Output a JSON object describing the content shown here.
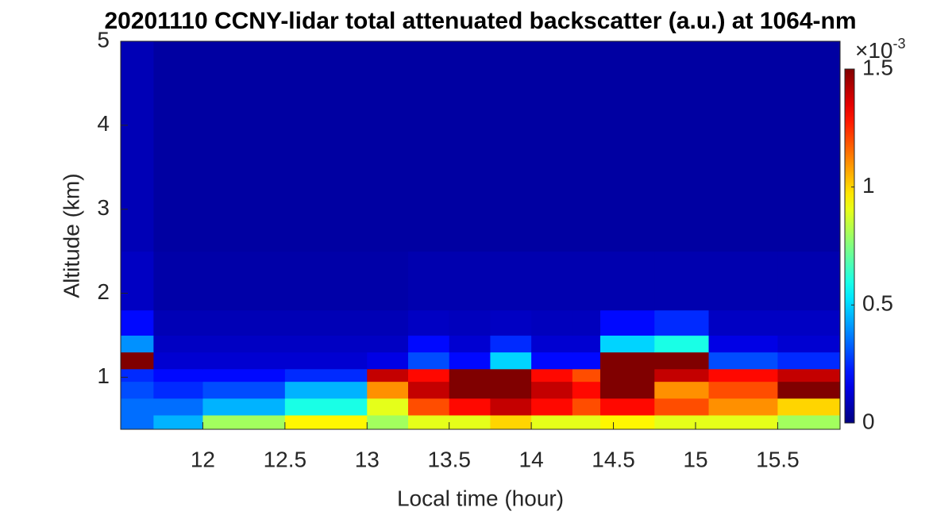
{
  "chart_data": {
    "type": "heatmap",
    "title": "20201110 CCNY-lidar total attenuated backscatter (a.u.) at 1064-nm",
    "xlabel": "Local time (hour)",
    "ylabel": "Altitude (km)",
    "x_edges": [
      11.5,
      11.7,
      12,
      12.5,
      13,
      13.25,
      13.5,
      13.75,
      14,
      14.25,
      14.42,
      14.75,
      15.08,
      15.5,
      15.88
    ],
    "y_edges": [
      0.38,
      0.55,
      0.75,
      0.95,
      1.1,
      1.3,
      1.5,
      1.8,
      2.5,
      5
    ],
    "z": [
      [
        0.35,
        0.45,
        0.8,
        0.95,
        0.8,
        0.9,
        0.9,
        1.0,
        0.9,
        0.9,
        0.95,
        0.9,
        0.9,
        0.8
      ],
      [
        0.35,
        0.35,
        0.45,
        0.6,
        0.9,
        1.2,
        1.3,
        1.4,
        1.3,
        1.2,
        1.3,
        1.2,
        1.1,
        1.0
      ],
      [
        0.3,
        0.25,
        0.3,
        0.45,
        1.1,
        1.4,
        1.5,
        1.5,
        1.4,
        1.3,
        1.5,
        1.1,
        1.2,
        1.5
      ],
      [
        0.25,
        0.2,
        0.2,
        0.25,
        1.4,
        1.3,
        1.5,
        1.5,
        1.3,
        1.2,
        1.5,
        1.4,
        1.3,
        1.4
      ],
      [
        1.5,
        0.12,
        0.12,
        0.12,
        0.15,
        0.3,
        0.2,
        0.5,
        0.2,
        0.2,
        1.5,
        1.5,
        0.3,
        0.25
      ],
      [
        0.4,
        0.1,
        0.1,
        0.1,
        0.1,
        0.2,
        0.12,
        0.25,
        0.12,
        0.12,
        0.5,
        0.6,
        0.15,
        0.12
      ],
      [
        0.2,
        0.08,
        0.08,
        0.08,
        0.08,
        0.1,
        0.09,
        0.1,
        0.09,
        0.09,
        0.2,
        0.25,
        0.1,
        0.1
      ],
      [
        0.1,
        0.06,
        0.06,
        0.06,
        0.06,
        0.07,
        0.07,
        0.07,
        0.07,
        0.07,
        0.07,
        0.07,
        0.07,
        0.07
      ],
      [
        0.08,
        0.05,
        0.05,
        0.05,
        0.05,
        0.05,
        0.05,
        0.05,
        0.05,
        0.05,
        0.05,
        0.05,
        0.05,
        0.05
      ]
    ],
    "xlim": [
      11.5,
      15.88
    ],
    "ylim": [
      0.38,
      5
    ],
    "xticks": [
      12,
      12.5,
      13,
      13.5,
      14,
      14.5,
      15,
      15.5
    ],
    "yticks": [
      1,
      2,
      3,
      4,
      5
    ],
    "clim": [
      0,
      1.5
    ],
    "cticks": [
      0,
      0.5,
      1,
      1.5
    ],
    "colorbar_multiplier": {
      "base": "×10",
      "exponent": "-3"
    },
    "colormap": "jet"
  }
}
